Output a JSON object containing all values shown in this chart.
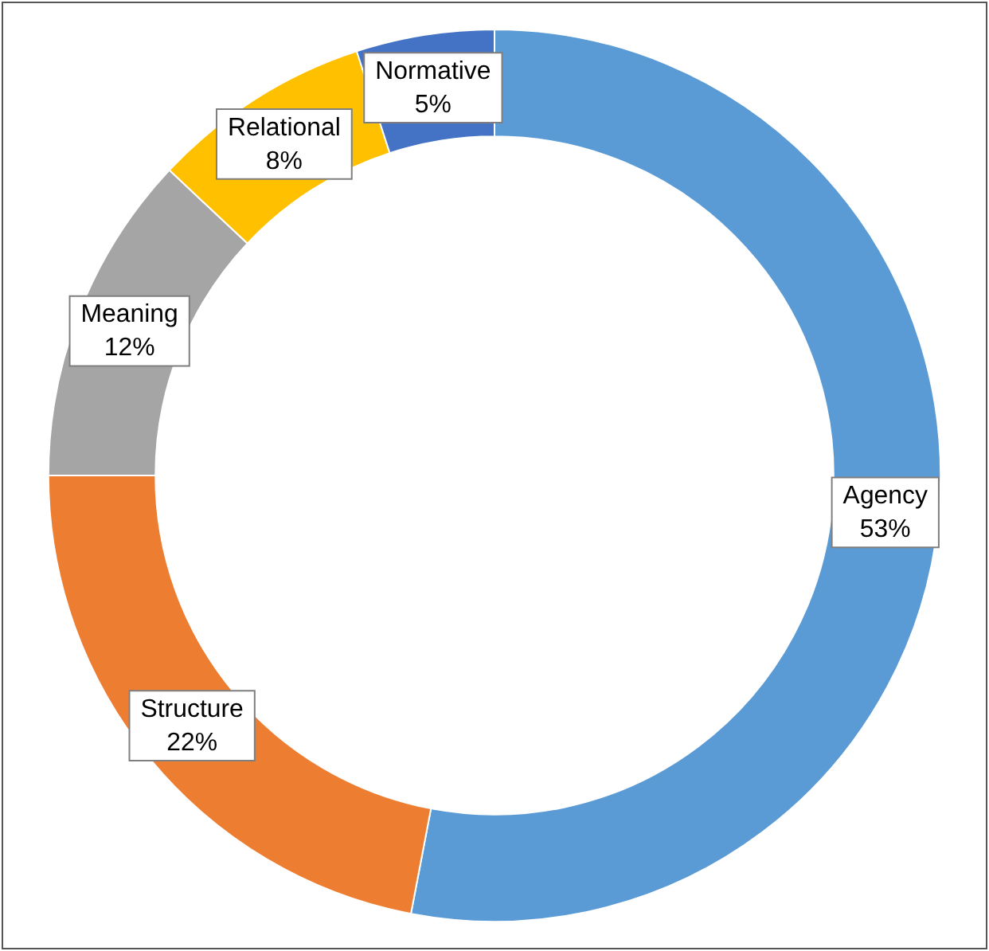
{
  "chart_data": {
    "type": "donut",
    "categories": [
      "Agency",
      "Structure",
      "Meaning",
      "Relational",
      "Normative"
    ],
    "values": [
      53,
      22,
      12,
      8,
      5
    ],
    "value_labels": [
      "53%",
      "22%",
      "12%",
      "8%",
      "5%"
    ],
    "colors": [
      "#5b9bd5",
      "#ed7d31",
      "#a5a5a5",
      "#ffc000",
      "#4472c4"
    ],
    "legend": false
  }
}
